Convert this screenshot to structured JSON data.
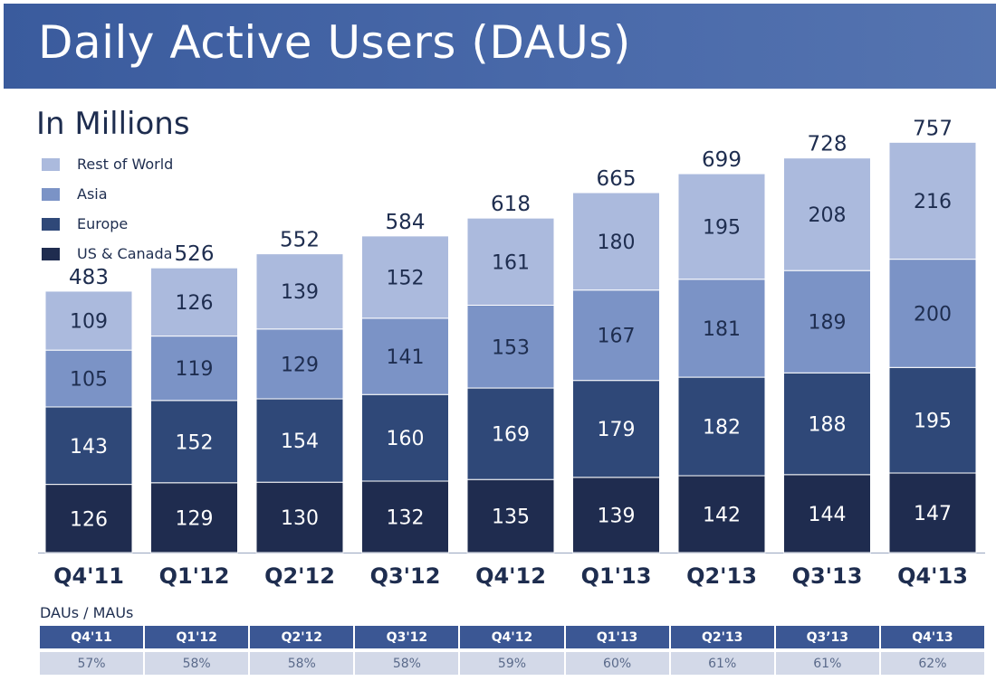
{
  "title": "Daily Active Users (DAUs)",
  "subtitle": "In Millions",
  "chart_data": {
    "type": "bar",
    "stacked": true,
    "title": "Daily Active Users (DAUs)",
    "subtitle": "In Millions",
    "categories": [
      "Q4'11",
      "Q1'12",
      "Q2'12",
      "Q3'12",
      "Q4'12",
      "Q1'13",
      "Q2'13",
      "Q3'13",
      "Q4'13"
    ],
    "series": [
      {
        "name": "US & Canada",
        "color": "#1f2c4f",
        "values": [
          126,
          129,
          130,
          132,
          135,
          139,
          142,
          144,
          147
        ]
      },
      {
        "name": "Europe",
        "color": "#2f4878",
        "values": [
          143,
          152,
          154,
          160,
          169,
          179,
          182,
          188,
          195
        ]
      },
      {
        "name": "Asia",
        "color": "#7b93c6",
        "values": [
          105,
          119,
          129,
          141,
          153,
          167,
          181,
          189,
          200
        ]
      },
      {
        "name": "Rest of World",
        "color": "#abbadd",
        "values": [
          109,
          126,
          139,
          152,
          161,
          180,
          195,
          208,
          216
        ]
      }
    ],
    "totals": [
      483,
      526,
      552,
      584,
      618,
      665,
      699,
      728,
      757
    ],
    "legend_position": "top-left",
    "grid": false
  },
  "legend_order": [
    "Rest of World",
    "Asia",
    "Europe",
    "US & Canada"
  ],
  "ratio": {
    "caption": "DAUs / MAUs",
    "quarters": [
      "Q4'11",
      "Q1'12",
      "Q2'12",
      "Q3'12",
      "Q4'12",
      "Q1'13",
      "Q2'13",
      "Q3’13",
      "Q4'13"
    ],
    "values": [
      "57%",
      "58%",
      "58%",
      "58%",
      "59%",
      "60%",
      "61%",
      "61%",
      "62%"
    ]
  }
}
